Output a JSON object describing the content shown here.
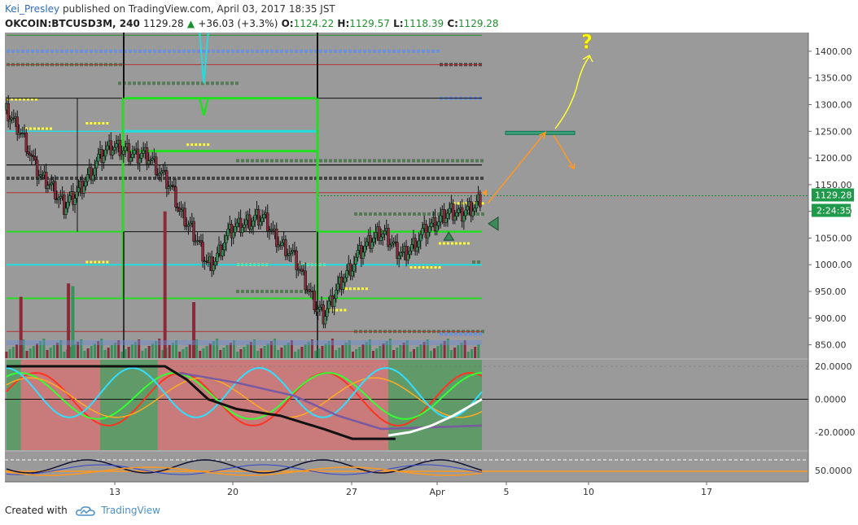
{
  "header": {
    "author": "Kei_Presley",
    "published_text": "published on TradingView.com, April 03, 2017 18:35 JST",
    "symbol": "OKCOIN:BTCUSD3M, 240",
    "last": "1129.28",
    "change": "+36.03 (+3.3%)",
    "o_label": "O:",
    "o": "1124.22",
    "h_label": "H:",
    "h": "1129.57",
    "l_label": "L:",
    "l": "1118.39",
    "c_label": "C:",
    "c": "1129.28"
  },
  "footer": {
    "created_with": "Created with",
    "brand": "TradingView"
  },
  "colors": {
    "plot_bg": "#9a9a9a",
    "up_candle": "#3a8f5a",
    "down_candle": "#8b2a3a",
    "lime": "#22dd22",
    "cyan": "#22dddd",
    "yellow": "#ffff33",
    "orange": "#ff9922",
    "dark_green_marks": "#3d7a3d",
    "osc_green_zone": "#5f9a68",
    "osc_red_zone": "#c97b7b"
  },
  "chart_data": {
    "type": "candlestick",
    "symbol": "OKCOIN:BTCUSD3M",
    "interval": "240",
    "x_ticks": [
      "13",
      "20",
      "27",
      "Apr",
      "5",
      "10",
      "17"
    ],
    "y_ticks": [
      850,
      900,
      950,
      1000,
      1050,
      1100,
      1150,
      1200,
      1250,
      1300,
      1350,
      1400
    ],
    "ylim": [
      825,
      1435
    ],
    "last_price_label": "1129.28",
    "countdown_label": "2:24:35",
    "close_path": [
      [
        0,
        1290
      ],
      [
        0.5,
        1270
      ],
      [
        1,
        1250
      ],
      [
        1.5,
        1220
      ],
      [
        2,
        1180
      ],
      [
        2.5,
        1160
      ],
      [
        3,
        1150
      ],
      [
        3.5,
        1130
      ],
      [
        4,
        1110
      ],
      [
        4.5,
        1125
      ],
      [
        5,
        1140
      ],
      [
        5.5,
        1160
      ],
      [
        6,
        1180
      ],
      [
        6.5,
        1200
      ],
      [
        7,
        1215
      ],
      [
        7.5,
        1220
      ],
      [
        8,
        1215
      ],
      [
        8.5,
        1210
      ],
      [
        9,
        1205
      ],
      [
        9.5,
        1210
      ],
      [
        10,
        1200
      ],
      [
        10.5,
        1180
      ],
      [
        11,
        1160
      ],
      [
        11.5,
        1140
      ],
      [
        12,
        1100
      ],
      [
        12.5,
        1080
      ],
      [
        13,
        1060
      ],
      [
        13.5,
        1030
      ],
      [
        14,
        1000
      ],
      [
        14.5,
        1010
      ],
      [
        15,
        1040
      ],
      [
        15.5,
        1060
      ],
      [
        16,
        1070
      ],
      [
        16.5,
        1075
      ],
      [
        17,
        1080
      ],
      [
        17.5,
        1090
      ],
      [
        18,
        1085
      ],
      [
        18.5,
        1060
      ],
      [
        19,
        1040
      ],
      [
        19.5,
        1030
      ],
      [
        20,
        1010
      ],
      [
        20.5,
        980
      ],
      [
        21,
        950
      ],
      [
        21.5,
        920
      ],
      [
        22,
        905
      ],
      [
        22.5,
        930
      ],
      [
        23,
        960
      ],
      [
        23.5,
        980
      ],
      [
        24,
        1000
      ],
      [
        24.5,
        1020
      ],
      [
        25,
        1035
      ],
      [
        25.5,
        1050
      ],
      [
        26,
        1060
      ],
      [
        26.5,
        1050
      ],
      [
        27,
        1030
      ],
      [
        27.5,
        1020
      ],
      [
        28,
        1030
      ],
      [
        28.5,
        1045
      ],
      [
        29,
        1060
      ],
      [
        29.5,
        1070
      ],
      [
        30,
        1080
      ],
      [
        30.5,
        1095
      ],
      [
        31,
        1100
      ],
      [
        31.5,
        1095
      ],
      [
        32,
        1105
      ],
      [
        32.5,
        1110
      ],
      [
        33,
        1129.28
      ]
    ],
    "volume_spikes": [
      {
        "t": 1,
        "v": 940,
        "dir": "down"
      },
      {
        "t": 4.3,
        "v": 965,
        "dir": "down"
      },
      {
        "t": 4.6,
        "v": 960,
        "dir": "up"
      },
      {
        "t": 11,
        "v": 1100,
        "dir": "down"
      },
      {
        "t": 13,
        "v": 930,
        "dir": "down"
      }
    ],
    "resistance_box": {
      "top": 1250,
      "bottom": 1245
    },
    "annotation_label": "?",
    "oscillator1": {
      "y_ticks": [
        "20.0000",
        "0.0000",
        "-20.0000"
      ],
      "zones": [
        {
          "from": 0,
          "to": 1,
          "color": "green"
        },
        {
          "from": 1,
          "to": 6.5,
          "color": "red"
        },
        {
          "from": 6.5,
          "to": 10.5,
          "color": "green"
        },
        {
          "from": 10.5,
          "to": 26.5,
          "color": "red"
        },
        {
          "from": 26.5,
          "to": 33,
          "color": "green"
        }
      ]
    },
    "oscillator2": {
      "y_ticks": [
        "50.0000"
      ]
    }
  }
}
